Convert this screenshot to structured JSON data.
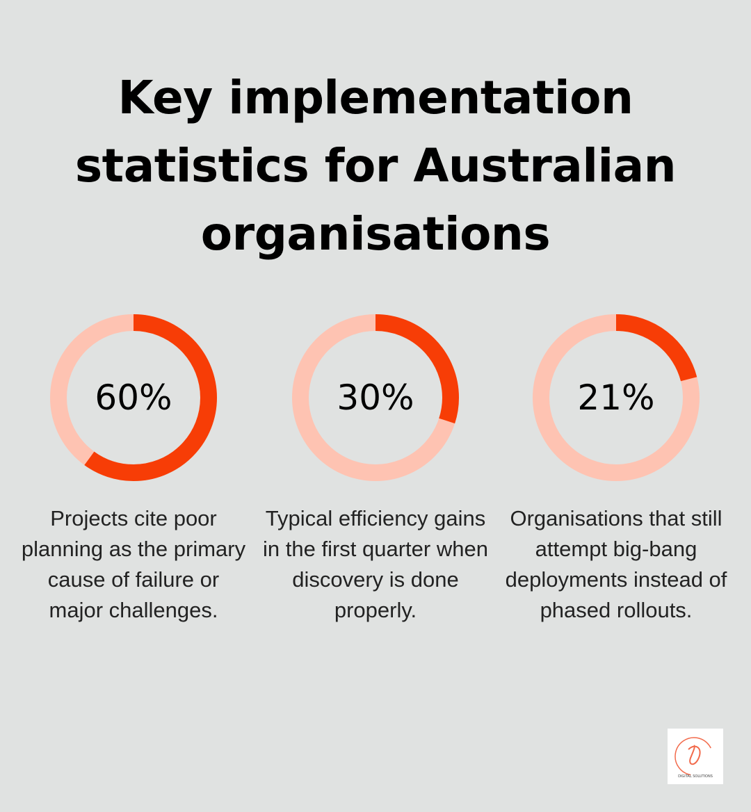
{
  "title": "Key implementation statistics for Australian organisations",
  "colors": {
    "background": "#e0e2e1",
    "accent": "#f73d06",
    "track": "#fec3b2"
  },
  "chart_data": [
    {
      "type": "pie",
      "style": "donut",
      "value": 60,
      "max": 100,
      "label": "60%",
      "description": "Projects cite poor planning as the primary cause of failure or major challenges."
    },
    {
      "type": "pie",
      "style": "donut",
      "value": 30,
      "max": 100,
      "label": "30%",
      "description": "Typical efficiency gains in the first quarter when discovery is done properly."
    },
    {
      "type": "pie",
      "style": "donut",
      "value": 21,
      "max": 100,
      "label": "21%",
      "description": "Organisations that still attempt big-bang deployments instead of phased rollouts."
    }
  ],
  "logo": {
    "text": "DYNAMIC DIGITAL SOLUTIONS"
  }
}
